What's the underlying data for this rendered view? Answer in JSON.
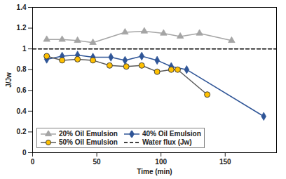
{
  "chart_data": {
    "type": "line",
    "x_label": "Time (min)",
    "y_label": "J/Jw",
    "xlim": [
      0,
      190
    ],
    "xticks": [
      0,
      50,
      100,
      150
    ],
    "ylim": [
      0,
      1.4
    ],
    "yticks": [
      0,
      0.2,
      0.4,
      0.6,
      0.8,
      1,
      1.2,
      1.4
    ],
    "grid": false,
    "legend": "lower left",
    "series": [
      {
        "name": "20% Oil Emulsion",
        "color": "#a5a5a5",
        "marker": "triangle",
        "line_style": "solid",
        "x": [
          11,
          23,
          35,
          47,
          72,
          87,
          102,
          115,
          130,
          155
        ],
        "values": [
          1.09,
          1.09,
          1.08,
          1.06,
          1.16,
          1.17,
          1.15,
          1.12,
          1.15,
          1.08
        ]
      },
      {
        "name": "40% Oil Emulsion",
        "color": "#2f5597",
        "marker": "diamond",
        "line_style": "solid",
        "x": [
          11,
          23,
          35,
          47,
          61,
          72,
          85,
          97,
          108,
          120,
          180
        ],
        "values": [
          0.9,
          0.93,
          0.94,
          0.92,
          0.92,
          0.89,
          0.93,
          0.89,
          0.83,
          0.8,
          0.35
        ]
      },
      {
        "name": "50% Oil Emulsion",
        "color": "#ffc000",
        "marker": "circle",
        "line_style": "solid",
        "x": [
          11,
          23,
          35,
          47,
          60,
          73,
          85,
          97,
          108,
          113,
          136
        ],
        "values": [
          0.93,
          0.89,
          0.9,
          0.89,
          0.84,
          0.83,
          0.84,
          0.78,
          0.8,
          0.8,
          0.56
        ]
      },
      {
        "name": "Water flux (Jw)",
        "color": "#000000",
        "marker": "none",
        "line_style": "dashed",
        "x": [
          0,
          190
        ],
        "values": [
          1,
          1
        ]
      }
    ]
  }
}
